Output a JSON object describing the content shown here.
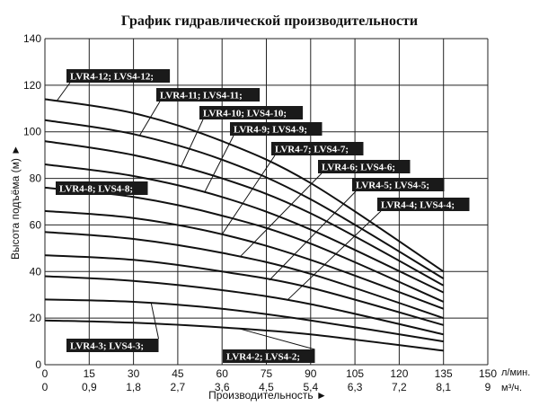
{
  "chart_data": {
    "type": "line",
    "title": "График гидравлической производительности",
    "xlabel": "Производительность ►",
    "ylabel": "Высота подъёма (м) ►",
    "x_unit": "л/мин.",
    "x2_unit": "м³/ч.",
    "xlim": [
      0,
      150
    ],
    "ylim": [
      0,
      140
    ],
    "x_ticks": [
      "0",
      "15",
      "30",
      "45",
      "60",
      "75",
      "90",
      "105",
      "120",
      "135",
      "150"
    ],
    "x2_ticks": [
      "0",
      "0,9",
      "1,8",
      "2,7",
      "3,6",
      "4,5",
      "5,4",
      "6,3",
      "7,2",
      "8,1",
      "9"
    ],
    "y_ticks": [
      "0",
      "20",
      "40",
      "60",
      "80",
      "100",
      "120",
      "140"
    ],
    "grid": true,
    "series": [
      {
        "name": "LVR4-12; LVS4-12;",
        "x": [
          0,
          30,
          60,
          90,
          135
        ],
        "y": [
          114,
          108,
          96,
          78,
          40
        ]
      },
      {
        "name": "LVR4-11; LVS4-11;",
        "x": [
          0,
          30,
          60,
          90,
          135
        ],
        "y": [
          105,
          99,
          88,
          71,
          37
        ]
      },
      {
        "name": "LVR4-10; LVS4-10;",
        "x": [
          0,
          30,
          60,
          90,
          135
        ],
        "y": [
          96,
          90,
          80,
          65,
          34
        ]
      },
      {
        "name": "LVR4-9; LVS4-9;",
        "x": [
          0,
          30,
          60,
          90,
          135
        ],
        "y": [
          86,
          81,
          72,
          58,
          31
        ]
      },
      {
        "name": "LVR4-8; LVS4-8;",
        "x": [
          0,
          30,
          60,
          90,
          135
        ],
        "y": [
          76,
          72,
          64,
          52,
          27
        ]
      },
      {
        "name": "LVR4-7; LVS4-7;",
        "x": [
          0,
          30,
          60,
          90,
          135
        ],
        "y": [
          66,
          63,
          56,
          45,
          24
        ]
      },
      {
        "name": "LVR4-6; LVS4-6;",
        "x": [
          0,
          30,
          60,
          90,
          135
        ],
        "y": [
          57,
          54,
          48,
          39,
          20
        ]
      },
      {
        "name": "LVR4-5; LVS4-5;",
        "x": [
          0,
          30,
          60,
          90,
          135
        ],
        "y": [
          47,
          45,
          40,
          33,
          17
        ]
      },
      {
        "name": "LVR4-4; LVS4-4;",
        "x": [
          0,
          30,
          60,
          90,
          135
        ],
        "y": [
          38,
          36,
          32,
          26,
          13
        ]
      },
      {
        "name": "LVR4-3; LVS4-3;",
        "x": [
          0,
          30,
          60,
          90,
          135
        ],
        "y": [
          28,
          27,
          24,
          19,
          10
        ]
      },
      {
        "name": "LVR4-2; LVS4-2;",
        "x": [
          0,
          30,
          60,
          90,
          135
        ],
        "y": [
          19,
          18,
          16,
          13,
          6
        ]
      }
    ]
  }
}
